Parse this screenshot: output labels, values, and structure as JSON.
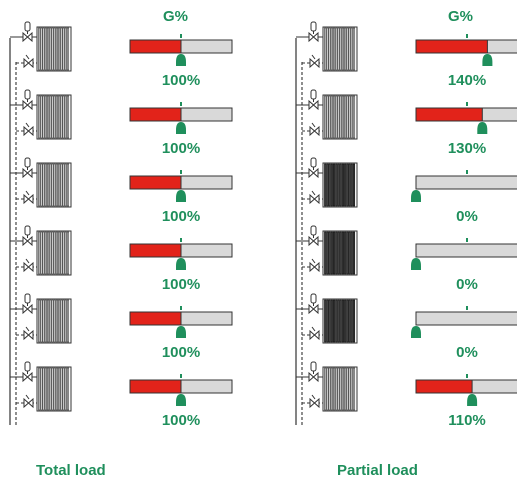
{
  "colors": {
    "accent_green": "#1f8f5c",
    "flow_red": "#e2231a",
    "gauge_bg": "#d9d9d9",
    "outline": "#333333"
  },
  "panels": [
    {
      "id": "total",
      "header": "G%",
      "caption": "Total load",
      "rows": [
        {
          "value": 100,
          "label": "100%",
          "radiator_on": true
        },
        {
          "value": 100,
          "label": "100%",
          "radiator_on": true
        },
        {
          "value": 100,
          "label": "100%",
          "radiator_on": true
        },
        {
          "value": 100,
          "label": "100%",
          "radiator_on": true
        },
        {
          "value": 100,
          "label": "100%",
          "radiator_on": true
        },
        {
          "value": 100,
          "label": "100%",
          "radiator_on": true
        }
      ]
    },
    {
      "id": "partial",
      "header": "G%",
      "caption": "Partial load",
      "rows": [
        {
          "value": 140,
          "label": "140%",
          "radiator_on": true
        },
        {
          "value": 130,
          "label": "130%",
          "radiator_on": true
        },
        {
          "value": 0,
          "label": "0%",
          "radiator_on": false
        },
        {
          "value": 0,
          "label": "0%",
          "radiator_on": false
        },
        {
          "value": 0,
          "label": "0%",
          "radiator_on": false
        },
        {
          "value": 110,
          "label": "110%",
          "radiator_on": true
        }
      ]
    }
  ],
  "gauge_scale_max": 200
}
